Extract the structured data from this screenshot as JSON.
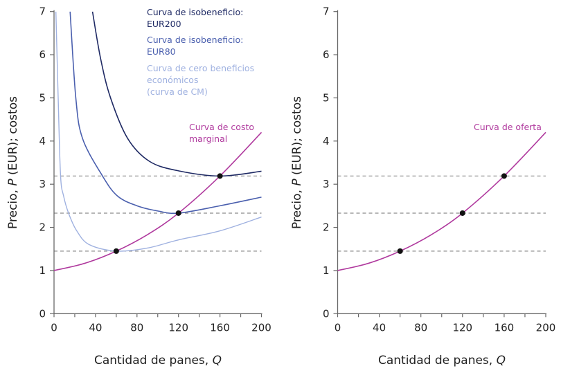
{
  "chart_data": [
    {
      "type": "line",
      "xlabel": "Cantidad de panes, Q",
      "xlabel_prefix": "Cantidad de panes, ",
      "xlabel_var": "Q",
      "ylabel_prefix": "Precio, ",
      "ylabel_var": "P",
      "ylabel_suffix": " (EUR); costos",
      "xlim": [
        0,
        200
      ],
      "ylim": [
        0,
        7
      ],
      "xticks": [
        0,
        40,
        80,
        120,
        160,
        200
      ],
      "yticks": [
        0,
        1,
        2,
        3,
        4,
        5,
        6,
        7
      ],
      "grid": false,
      "reference_lines_y": [
        1.45,
        2.33,
        3.19
      ],
      "series": [
        {
          "name": "Curva de isobeneficio: EUR200",
          "label_lines": [
            "Curva de isobeneficio:",
            "EUR200"
          ],
          "color": "#1f2a64",
          "x": [
            37.1,
            45,
            54.5,
            71,
            92,
            120,
            160,
            200
          ],
          "y": [
            7,
            5.9,
            5,
            4.06,
            3.53,
            3.31,
            3.19,
            3.3
          ]
        },
        {
          "name": "Curva de isobeneficio: EUR80",
          "label_lines": [
            "Curva de isobeneficio:",
            "EUR80"
          ],
          "color": "#4a5fae",
          "x": [
            15.5,
            21,
            27.5,
            46.5,
            61,
            80,
            100,
            120,
            160,
            200
          ],
          "y": [
            7,
            5,
            4.06,
            3.2,
            2.73,
            2.5,
            2.38,
            2.33,
            2.5,
            2.7
          ]
        },
        {
          "name": "Curva de cero beneficios económicos (curva de CM)",
          "label_lines": [
            "Curva de cero beneficios",
            "económicos",
            "(curva de CM)"
          ],
          "color": "#9fb1e0",
          "x": [
            1.8,
            4,
            6.3,
            9.2,
            14,
            21.9,
            34,
            60,
            90,
            120,
            160,
            200
          ],
          "y": [
            7,
            5,
            3.2,
            2.73,
            2.33,
            1.92,
            1.6,
            1.45,
            1.52,
            1.71,
            1.92,
            2.24
          ]
        },
        {
          "name": "Curva de costo marginal",
          "label_lines": [
            "Curva de costo",
            "marginal"
          ],
          "color": "#b03a9e",
          "x": [
            0,
            30,
            60,
            90,
            120,
            160,
            200
          ],
          "y": [
            1,
            1.17,
            1.45,
            1.83,
            2.33,
            3.19,
            4.2
          ]
        }
      ],
      "points": [
        {
          "x": 60,
          "y": 1.45
        },
        {
          "x": 120,
          "y": 2.33
        },
        {
          "x": 160,
          "y": 3.19
        }
      ]
    },
    {
      "type": "line",
      "xlabel": "Cantidad de panes, Q",
      "xlabel_prefix": "Cantidad de panes, ",
      "xlabel_var": "Q",
      "ylabel_prefix": "Precio, ",
      "ylabel_var": "P",
      "ylabel_suffix": " (EUR); costos",
      "xlim": [
        0,
        200
      ],
      "ylim": [
        0,
        7
      ],
      "xticks": [
        0,
        40,
        80,
        120,
        160,
        200
      ],
      "yticks": [
        0,
        1,
        2,
        3,
        4,
        5,
        6,
        7
      ],
      "grid": false,
      "reference_lines_y": [
        1.45,
        2.33,
        3.19
      ],
      "series": [
        {
          "name": "Curva de oferta",
          "label_lines": [
            "Curva de oferta"
          ],
          "color": "#b03a9e",
          "x": [
            0,
            30,
            60,
            90,
            120,
            160,
            200
          ],
          "y": [
            1,
            1.17,
            1.45,
            1.83,
            2.33,
            3.19,
            4.2
          ]
        }
      ],
      "points": [
        {
          "x": 60,
          "y": 1.45
        },
        {
          "x": 120,
          "y": 2.33
        },
        {
          "x": 160,
          "y": 3.19
        }
      ]
    }
  ]
}
